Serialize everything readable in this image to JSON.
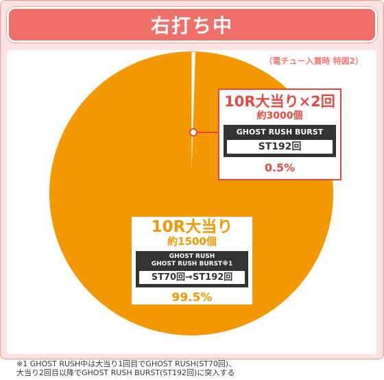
{
  "header": {
    "title": "右打ち中"
  },
  "subnote": "（電チュー入賞時 特図2）",
  "colors": {
    "major": "#f39800",
    "minor": "#ffffff",
    "accent": "#e8473f",
    "header": "#ef6f6a"
  },
  "chart_data": {
    "type": "pie",
    "title": "右打ち中",
    "subtitle": "（電チュー入賞時 特図2）",
    "slices": [
      {
        "label": "10R大当り",
        "payout": "約1500個",
        "mode": "GHOST RUSH\nGHOST RUSH BURST※1",
        "mode_line1": "GHOST RUSH",
        "mode_line2": "GHOST RUSH BURST※1",
        "st": "ST70回→ST192回",
        "percent_label": "99.5%",
        "value": 99.5
      },
      {
        "label": "10R大当り×2回",
        "payout": "約3000個",
        "mode": "GHOST RUSH BURST",
        "st": "ST192回",
        "percent_label": "0.5%",
        "value": 0.5
      }
    ]
  },
  "footnote": {
    "line1": "※1 GHOST RUSH中は大当り1回目でGHOST RUSH(ST70回)、",
    "line2": "大当り2回目以降でGHOST RUSH BURST(ST192回)に突入する"
  }
}
